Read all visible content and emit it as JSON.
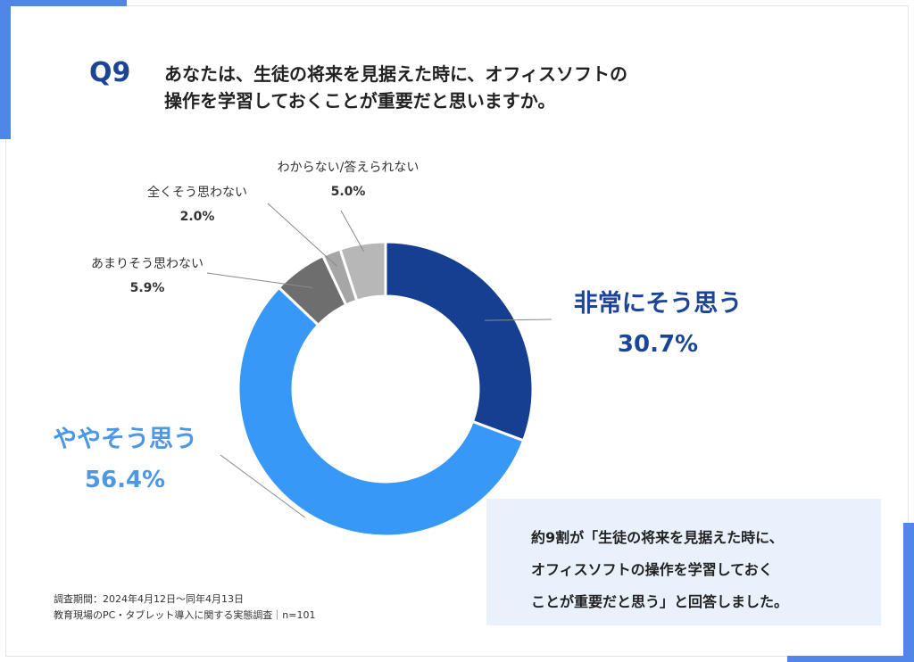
{
  "question_no": "Q9",
  "question_lines": [
    "あなたは、生徒の将来を見据えた時に、オフィスソフトの",
    "操作を学習しておくことが重要だと思いますか。"
  ],
  "colors": {
    "very_agree": "#163f91",
    "somewhat_agree": "#3798f8",
    "not_really": "#6e6e6e",
    "not_at_all": "#a6a6a6",
    "dont_know": "#b7b7b7",
    "label_dark_blue": "#1d4597",
    "label_light_blue": "#4e96e6",
    "accent": "#4f86e8"
  },
  "chart_data": {
    "type": "pie",
    "variant": "donut",
    "start": "12 o'clock, clockwise",
    "slices": [
      {
        "label": "非常にそう思う",
        "value": 30.7,
        "display": "30.7%"
      },
      {
        "label": "ややそう思う",
        "value": 56.4,
        "display": "56.4%"
      },
      {
        "label": "あまりそう思わない",
        "value": 5.9,
        "display": "5.9%"
      },
      {
        "label": "全くそう思わない",
        "value": 2.0,
        "display": "2.0%"
      },
      {
        "label": "わからない/答えられない",
        "value": 5.0,
        "display": "5.0%"
      }
    ]
  },
  "summary_lines": [
    "約9割が「生徒の将来を見据えた時に、",
    "オフィスソフトの操作を学習しておく",
    "ことが重要だと思う」と回答しました。"
  ],
  "source_lines": [
    "調査期間：2024年4月12日〜同年4月13日",
    "教育現場のPC・タブレット導入に関する実態調査｜n=101"
  ]
}
